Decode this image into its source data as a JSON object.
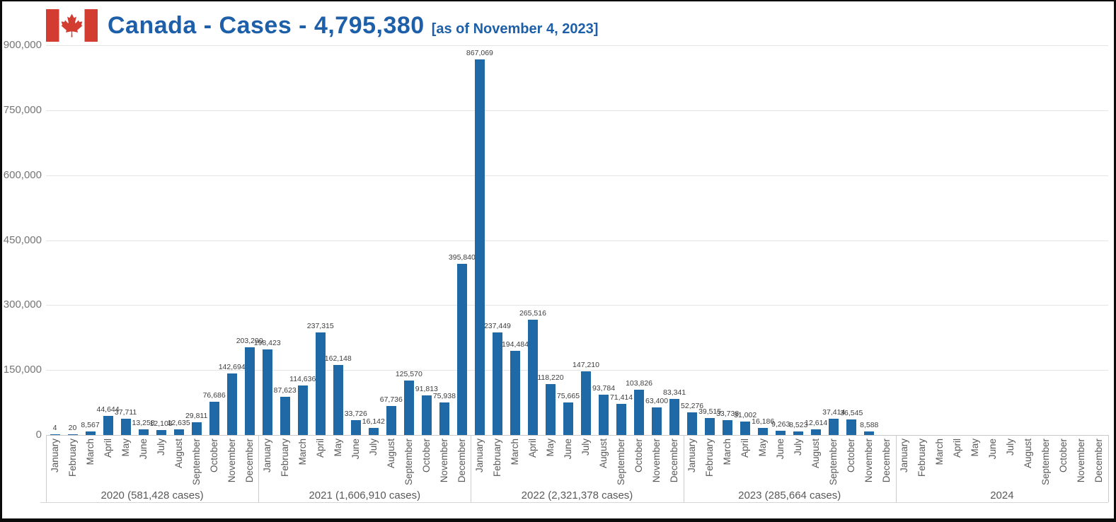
{
  "header": {
    "title": "Canada - Cases - 4,795,380",
    "subtitle": "[as of November 4, 2023]",
    "title_color": "#1d5fa8",
    "flag_red": "#d23c31"
  },
  "chart_data": {
    "type": "bar",
    "title": "Canada - Cases - 4,795,380",
    "subtitle": "[as of November 4, 2023]",
    "xlabel": "",
    "ylabel": "",
    "ylim": [
      0,
      900000
    ],
    "ytick_interval": 150000,
    "ytick_labels": [
      "0",
      "150,000",
      "300,000",
      "450,000",
      "600,000",
      "750,000",
      "900,000"
    ],
    "grid": true,
    "legend": "none",
    "bar_color": "#1f6aa6",
    "months": [
      "January",
      "February",
      "March",
      "April",
      "May",
      "June",
      "July",
      "August",
      "September",
      "October",
      "November",
      "December"
    ],
    "series": [
      {
        "name": "2020",
        "group_label": "2020 (581,428 cases)",
        "values": [
          4,
          20,
          8567,
          44644,
          37711,
          13258,
          12108,
          12635,
          29811,
          76686,
          142694,
          203290
        ]
      },
      {
        "name": "2021",
        "group_label": "2021 (1,606,910 cases)",
        "values": [
          198423,
          87623,
          114636,
          237315,
          162148,
          33726,
          16142,
          67736,
          125570,
          91813,
          75938,
          395840
        ]
      },
      {
        "name": "2022",
        "group_label": "2022 (2,321,378 cases)",
        "values": [
          867069,
          237449,
          194484,
          265516,
          118220,
          75665,
          147210,
          93784,
          71414,
          103826,
          63400,
          83341
        ]
      },
      {
        "name": "2023",
        "group_label": "2023 (285,664 cases)",
        "values": [
          52276,
          39515,
          33738,
          31002,
          16186,
          9263,
          8523,
          12614,
          37414,
          36545,
          8588,
          null
        ]
      },
      {
        "name": "2024",
        "group_label": "2024",
        "values": [
          null,
          null,
          null,
          null,
          null,
          null,
          null,
          null,
          null,
          null,
          null,
          null
        ]
      }
    ]
  }
}
